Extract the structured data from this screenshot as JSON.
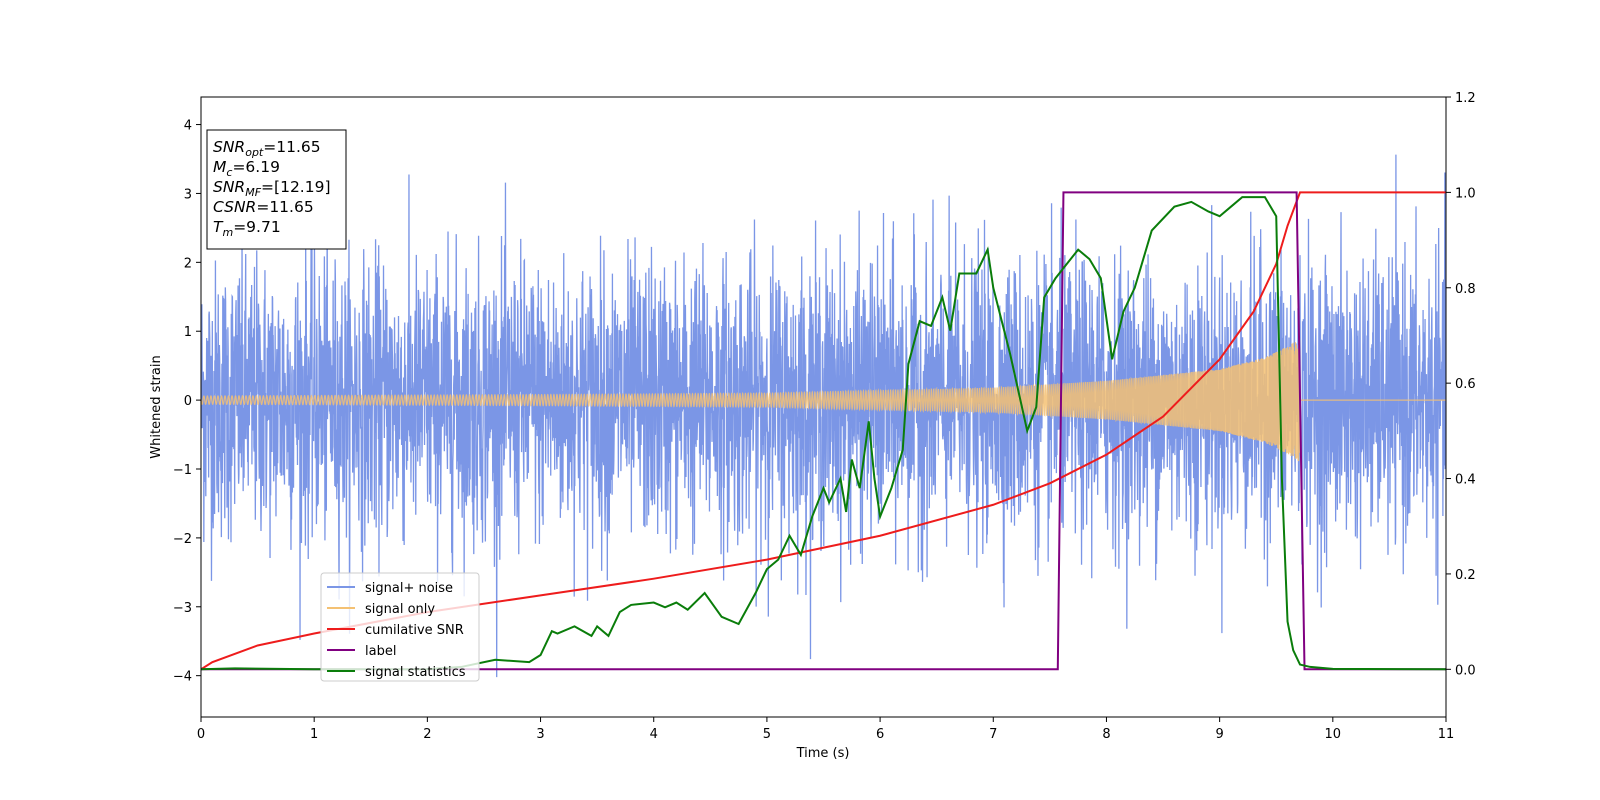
{
  "chart_data": {
    "type": "line",
    "title": "",
    "xlabel": "Time (s)",
    "ylabel": "Whitened strain",
    "y2label": "",
    "xlim": [
      0,
      11
    ],
    "ylim": [
      -4.6,
      4.4
    ],
    "y2lim": [
      -0.1,
      1.2
    ],
    "xticks": [
      0,
      1,
      2,
      3,
      4,
      5,
      6,
      7,
      8,
      9,
      10,
      11
    ],
    "yticks": [
      -4,
      -3,
      -2,
      -1,
      0,
      1,
      2,
      3,
      4
    ],
    "y2ticks": [
      0.0,
      0.2,
      0.4,
      0.6,
      0.8,
      1.0,
      1.2
    ],
    "grid": false,
    "legend_position": "lower-left",
    "annotation": {
      "lines": [
        {
          "main": "SNR",
          "sub": "opt",
          "rest": "=11.65"
        },
        {
          "main": "M",
          "sub": "c",
          "rest": "=6.19"
        },
        {
          "main": "SNR",
          "sub": "MF",
          "rest": "=[12.19]"
        },
        {
          "main": "CSNR",
          "sub": "",
          "rest": "=11.65"
        },
        {
          "main": "T",
          "sub": "m",
          "rest": "=9.71"
        }
      ]
    },
    "series": [
      {
        "name": "signal+ noise",
        "axis": "left",
        "color": "#7b96e6",
        "kind": "noise",
        "noise_std": 1.0,
        "t_range": [
          0,
          11
        ]
      },
      {
        "name": "signal only",
        "axis": "left",
        "color": "#f4c173",
        "kind": "chirp",
        "t_range": [
          0,
          9.71
        ],
        "envelope": {
          "t": [
            0,
            3,
            5,
            7,
            8,
            9,
            9.4,
            9.6,
            9.71
          ],
          "amp": [
            0.06,
            0.08,
            0.1,
            0.18,
            0.28,
            0.45,
            0.62,
            0.78,
            0.9
          ]
        },
        "after_merger_value": 0
      },
      {
        "name": "cumilative SNR",
        "axis": "right",
        "color": "#ee1c1c",
        "t": [
          0,
          0.1,
          0.5,
          1,
          2,
          3,
          4,
          5,
          6,
          7,
          7.5,
          8,
          8.5,
          9,
          9.3,
          9.5,
          9.6,
          9.71,
          9.72,
          11
        ],
        "y": [
          0.0,
          0.015,
          0.05,
          0.075,
          0.12,
          0.155,
          0.19,
          0.23,
          0.28,
          0.345,
          0.39,
          0.45,
          0.53,
          0.65,
          0.75,
          0.85,
          0.93,
          1.0,
          1.0,
          1.0
        ]
      },
      {
        "name": "label",
        "axis": "right",
        "color": "#800080",
        "t": [
          0,
          7.57,
          7.62,
          9.68,
          9.75,
          11
        ],
        "y": [
          0,
          0,
          1,
          1,
          0,
          0
        ]
      },
      {
        "name": "signal statistics",
        "axis": "right",
        "color": "#0a7d0a",
        "t": [
          0,
          0.3,
          1,
          2,
          2.3,
          2.6,
          2.9,
          3.0,
          3.1,
          3.15,
          3.3,
          3.45,
          3.5,
          3.6,
          3.7,
          3.8,
          4.0,
          4.1,
          4.2,
          4.3,
          4.45,
          4.6,
          4.75,
          4.9,
          5.0,
          5.1,
          5.2,
          5.3,
          5.4,
          5.5,
          5.55,
          5.65,
          5.7,
          5.75,
          5.82,
          5.9,
          5.95,
          6.0,
          6.1,
          6.2,
          6.25,
          6.35,
          6.45,
          6.55,
          6.62,
          6.7,
          6.85,
          6.95,
          7.0,
          7.15,
          7.3,
          7.38,
          7.45,
          7.55,
          7.65,
          7.75,
          7.85,
          7.95,
          8.05,
          8.15,
          8.25,
          8.4,
          8.6,
          8.75,
          8.9,
          9.0,
          9.1,
          9.2,
          9.4,
          9.5,
          9.55,
          9.6,
          9.65,
          9.71,
          9.8,
          10.0,
          11
        ],
        "y": [
          0.0,
          0.002,
          0.0,
          0.0,
          0.005,
          0.02,
          0.015,
          0.03,
          0.08,
          0.075,
          0.09,
          0.07,
          0.09,
          0.07,
          0.12,
          0.135,
          0.14,
          0.13,
          0.14,
          0.125,
          0.16,
          0.11,
          0.095,
          0.16,
          0.21,
          0.23,
          0.28,
          0.24,
          0.32,
          0.38,
          0.35,
          0.4,
          0.33,
          0.44,
          0.38,
          0.52,
          0.4,
          0.32,
          0.38,
          0.46,
          0.64,
          0.73,
          0.72,
          0.78,
          0.71,
          0.83,
          0.83,
          0.88,
          0.8,
          0.66,
          0.5,
          0.55,
          0.78,
          0.82,
          0.85,
          0.88,
          0.86,
          0.82,
          0.65,
          0.75,
          0.8,
          0.92,
          0.97,
          0.98,
          0.96,
          0.95,
          0.97,
          0.99,
          0.99,
          0.95,
          0.4,
          0.1,
          0.04,
          0.01,
          0.005,
          0.001,
          0.0
        ]
      }
    ]
  }
}
